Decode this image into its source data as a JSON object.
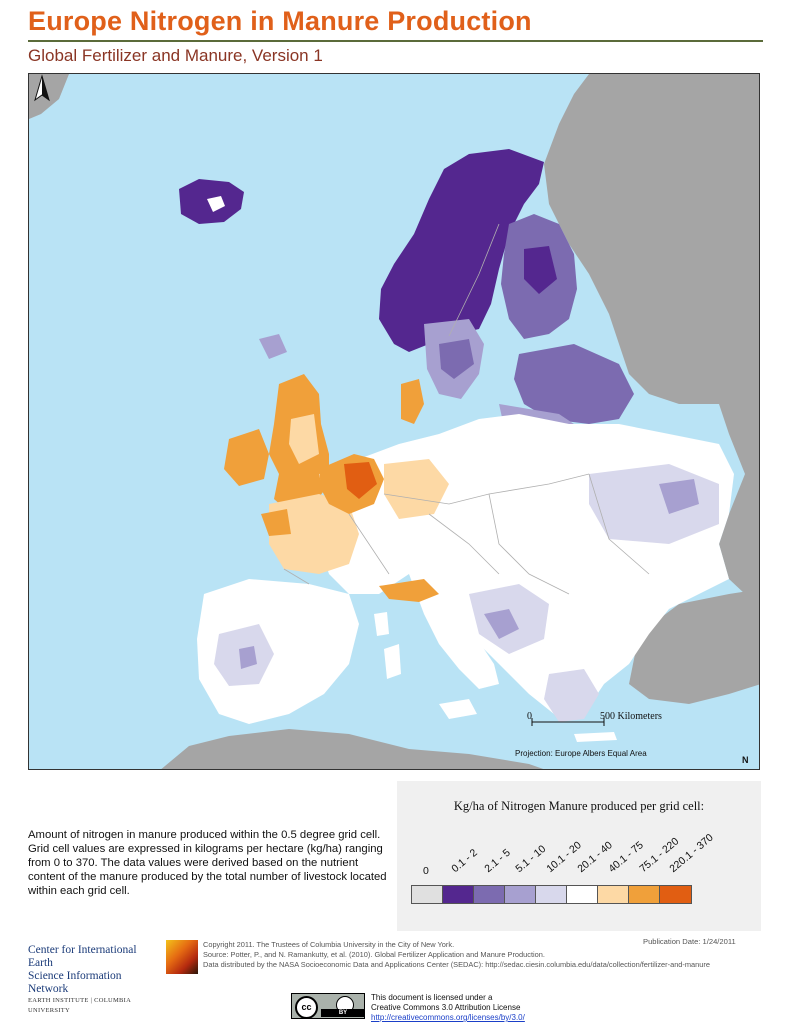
{
  "header": {
    "title": "Europe Nitrogen in Manure Production",
    "subtitle": "Global Fertilizer and Manure, Version 1"
  },
  "map": {
    "scale_zero": "0",
    "scale_label": "500 Kilometers",
    "projection": "Projection: Europe Albers Equal Area",
    "north": "N",
    "colors": {
      "water": "#b9e3f5",
      "land_nodata": "#a5a5a5",
      "land": "#ffffff",
      "border": "#b0b0b0"
    }
  },
  "description": "Amount of nitrogen in manure produced within the 0.5 degree grid cell.  Grid cell values are expressed in kilograms per hectare (kg/ha) ranging from 0 to 370. The data values were derived based on the nutrient content of the manure produced by the total number of livestock located within each grid cell.",
  "legend": {
    "title": "Kg/ha of Nitrogen Manure produced per grid cell:",
    "classes": [
      {
        "label": "0",
        "color": "#e0e0e0"
      },
      {
        "label": "0.1 - 2",
        "color": "#54278f"
      },
      {
        "label": "2.1 - 5",
        "color": "#7c6bb0"
      },
      {
        "label": "5.1 - 10",
        "color": "#a7a0d0"
      },
      {
        "label": "10.1 - 20",
        "color": "#d8d8ec"
      },
      {
        "label": "20.1 - 40",
        "color": "#ffffff"
      },
      {
        "label": "40.1 - 75",
        "color": "#fdd9a5"
      },
      {
        "label": "75.1 - 220",
        "color": "#f0a03a"
      },
      {
        "label": "220.1 - 370",
        "color": "#e15e12"
      }
    ]
  },
  "footer": {
    "org_line1": "Center for International Earth",
    "org_line2": "Science Information Network",
    "org_line3": "EARTH INSTITUTE | COLUMBIA UNIVERSITY",
    "copyright": "Copyright 2011. The Trustees of Columbia University in the City of New York.",
    "source": "Source: Potter, P., and N. Ramankutty, et al. (2010). Global Fertilizer Application and Manure Production.",
    "distributed": "Data distributed by the NASA Socioeconomic Data and Applications Center (SEDAC): http://sedac.ciesin.columbia.edu/data/collection/fertilizer-and-manure",
    "pub_date": "Publication Date: 1/24/2011",
    "license_line1": "This document is licensed under a",
    "license_line2": "Creative Commons 3.0 Attribution License",
    "license_link": "http://creativecommons.org/licenses/by/3.0/",
    "cc_badge": "cc",
    "by_badge": "BY"
  }
}
